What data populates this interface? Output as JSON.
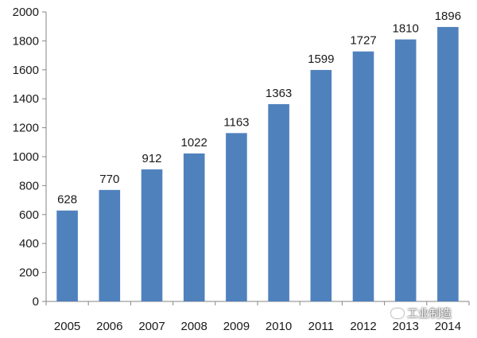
{
  "chart_data": {
    "type": "bar",
    "categories": [
      "2005",
      "2006",
      "2007",
      "2008",
      "2009",
      "2010",
      "2011",
      "2012",
      "2013",
      "2014"
    ],
    "values": [
      628,
      770,
      912,
      1022,
      1163,
      1363,
      1599,
      1727,
      1810,
      1896
    ],
    "data_labels": [
      "628",
      "770",
      "912",
      "1022",
      "1163",
      "1363",
      "1599",
      "1727",
      "1810",
      "1896"
    ],
    "yticks": [
      "0",
      "200",
      "400",
      "600",
      "800",
      "1000",
      "1200",
      "1400",
      "1600",
      "1800",
      "2000"
    ],
    "ylim": [
      0,
      2000
    ],
    "grid": false,
    "legend": "none",
    "bar_color": "#4f81bd"
  },
  "watermark": {
    "text": "工业制造",
    "icon": "wechat-icon"
  }
}
